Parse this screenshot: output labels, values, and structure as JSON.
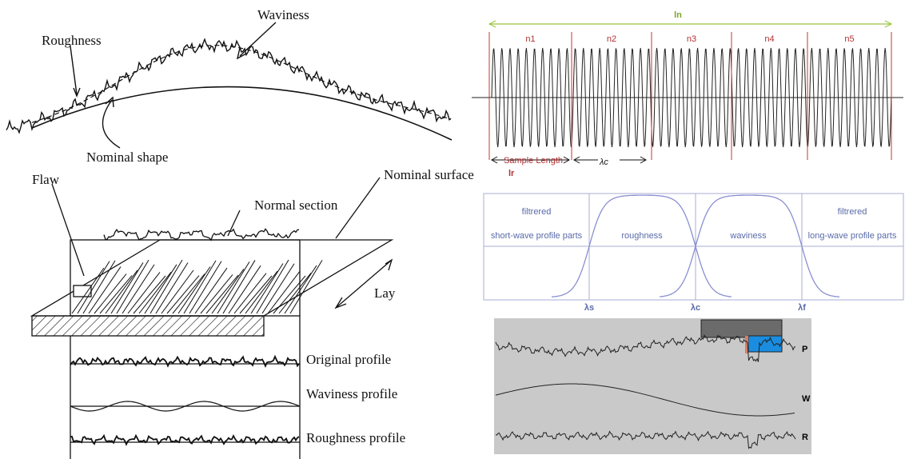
{
  "shape_diagram": {
    "roughness": "Roughness",
    "waviness": "Waviness",
    "nominal_shape": "Nominal shape"
  },
  "surface_diagram": {
    "flaw": "Flaw",
    "normal_section": "Normal section",
    "nominal_surface": "Nominal surface",
    "lay": "Lay",
    "profiles": [
      "Original profile",
      "Waviness profile",
      "Roughness profile"
    ]
  },
  "sampling_diagram": {
    "evaluation_length": "ln",
    "segments": [
      "n1",
      "n2",
      "n3",
      "n4",
      "n5"
    ],
    "sample_length": "Sample Length",
    "lr": "lr",
    "cutoff": "λc"
  },
  "filter_diagram": {
    "regions": [
      [
        "filtrered",
        "short-wave profile parts"
      ],
      [
        "roughness"
      ],
      [
        "waviness"
      ],
      [
        "filtrered",
        "long-wave profile parts"
      ]
    ],
    "cutoffs": [
      "λs",
      "λc",
      "λf"
    ]
  },
  "profile_diagram": {
    "labels": [
      "P",
      "W",
      "R"
    ]
  }
}
